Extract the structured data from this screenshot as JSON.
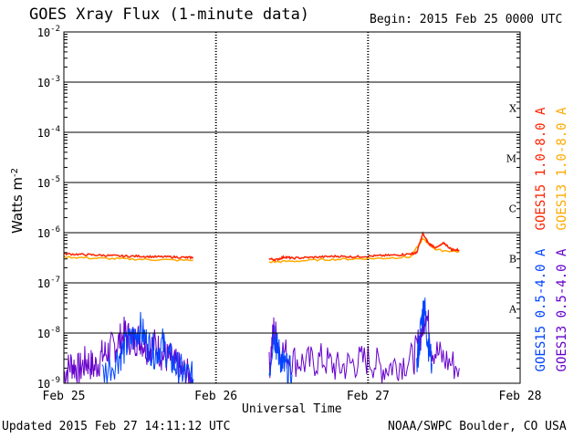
{
  "header": {
    "title": "GOES Xray Flux (1-minute data)",
    "begin": "Begin:  2015 Feb 25 0000 UTC"
  },
  "footer": {
    "updated": "Updated 2015 Feb 27 14:11:12 UTC",
    "credit": "NOAA/SWPC Boulder, CO USA"
  },
  "colors": {
    "goes15_long": "#ff2200",
    "goes13_long": "#ffaa00",
    "goes15_short": "#0044ff",
    "goes13_short": "#6600cc",
    "gridline": "#000000"
  },
  "chart_data": {
    "type": "line",
    "title": "GOES Xray Flux (1-minute data)",
    "xlabel": "Universal Time",
    "ylabel": "Watts m^-2",
    "yscale": "log",
    "ylim": [
      1e-09,
      0.01
    ],
    "xlim": [
      0,
      3
    ],
    "x_unit": "days since 2015 Feb 25 0000 UTC",
    "x_ticks": [
      "Feb 25",
      "Feb 26",
      "Feb 27",
      "Feb 28"
    ],
    "y_ticks": [
      {
        "mant": "10",
        "exp": "-9",
        "value": 1e-09
      },
      {
        "mant": "10",
        "exp": "-8",
        "value": 1e-08
      },
      {
        "mant": "10",
        "exp": "-7",
        "value": 1e-07
      },
      {
        "mant": "10",
        "exp": "-6",
        "value": 1e-06
      },
      {
        "mant": "10",
        "exp": "-5",
        "value": 1e-05
      },
      {
        "mant": "10",
        "exp": "-4",
        "value": 0.0001
      },
      {
        "mant": "10",
        "exp": "-3",
        "value": 0.001
      },
      {
        "mant": "10",
        "exp": "-2",
        "value": 0.01
      }
    ],
    "flare_classes": [
      {
        "label": "A",
        "value": 1e-08
      },
      {
        "label": "B",
        "value": 1e-07
      },
      {
        "label": "C",
        "value": 1e-06
      },
      {
        "label": "M",
        "value": 1e-05
      },
      {
        "label": "X",
        "value": 0.0001
      }
    ],
    "grid": true,
    "legend_position": "right",
    "legend": [
      {
        "name": "GOES15 1.0-8.0 A",
        "color": "#ff2200"
      },
      {
        "name": "GOES13 1.0-8.0 A",
        "color": "#ffaa00"
      },
      {
        "name": "GOES15 0.5-4.0 A",
        "color": "#0044ff"
      },
      {
        "name": "GOES13 0.5-4.0 A",
        "color": "#6600cc"
      }
    ],
    "series": [
      {
        "name": "GOES15 1.0-8.0 A",
        "color": "#ff2200",
        "segments": [
          {
            "x": [
              0.0,
              0.1,
              0.2,
              0.3,
              0.4,
              0.5,
              0.6,
              0.7,
              0.8,
              0.85
            ],
            "y": [
              3.8e-07,
              3.7e-07,
              3.6e-07,
              3.5e-07,
              3.4e-07,
              3.4e-07,
              3.3e-07,
              3.3e-07,
              3.2e-07,
              3.2e-07
            ]
          },
          {
            "x": [
              1.35,
              1.4,
              1.45,
              1.5,
              1.6,
              1.7,
              1.8,
              1.9,
              2.0,
              2.1,
              2.2,
              2.28,
              2.32,
              2.36,
              2.4,
              2.45,
              2.5,
              2.55,
              2.6
            ],
            "y": [
              3e-07,
              2.9e-07,
              3.3e-07,
              3.1e-07,
              3.2e-07,
              3.3e-07,
              3.4e-07,
              3.3e-07,
              3.4e-07,
              3.5e-07,
              3.6e-07,
              3.8e-07,
              4e-07,
              9.5e-07,
              6e-07,
              5e-07,
              6.2e-07,
              4.6e-07,
              4.5e-07
            ]
          }
        ]
      },
      {
        "name": "GOES13 1.0-8.0 A",
        "color": "#ffaa00",
        "segments": [
          {
            "x": [
              0.0,
              0.2,
              0.4,
              0.6,
              0.85
            ],
            "y": [
              3.3e-07,
              3.1e-07,
              3e-07,
              2.9e-07,
              2.8e-07
            ]
          },
          {
            "x": [
              1.35,
              1.5,
              1.7,
              1.9,
              2.1,
              2.28,
              2.36,
              2.45,
              2.6
            ],
            "y": [
              2.6e-07,
              2.7e-07,
              2.9e-07,
              3e-07,
              3.1e-07,
              3.3e-07,
              7.5e-07,
              4.5e-07,
              4.2e-07
            ]
          }
        ]
      },
      {
        "name": "GOES15 0.5-4.0 A",
        "color": "#0044ff",
        "segments": [
          {
            "x": [
              0.25,
              0.35,
              0.4,
              0.45,
              0.5,
              0.55,
              0.6,
              0.65,
              0.7,
              0.75,
              0.8,
              0.85
            ],
            "y": [
              1.5e-09,
              3e-09,
              5e-09,
              8e-09,
              1.3e-08,
              6e-09,
              4e-09,
              6e-09,
              3e-09,
              2e-09,
              1.5e-09,
              1.2e-09
            ]
          },
          {
            "x": [
              1.35,
              1.38,
              1.4,
              1.43,
              1.45,
              1.5
            ],
            "y": [
              1.5e-09,
              1.2e-08,
              5e-09,
              3e-09,
              2e-09,
              1.5e-09
            ]
          },
          {
            "x": [
              2.32,
              2.35,
              2.37,
              2.39,
              2.42
            ],
            "y": [
              2e-09,
              1.5e-08,
              4e-08,
              8e-09,
              2.5e-09
            ]
          }
        ]
      },
      {
        "name": "GOES13 0.5-4.0 A",
        "color": "#6600cc",
        "segments": [
          {
            "x": [
              0.0,
              0.05,
              0.1,
              0.15,
              0.2,
              0.25,
              0.3,
              0.35,
              0.4,
              0.45,
              0.5,
              0.55,
              0.6,
              0.65,
              0.7,
              0.75,
              0.8,
              0.85
            ],
            "y": [
              1.5e-09,
              2.5e-09,
              1.8e-09,
              2.8e-09,
              2e-09,
              3.5e-09,
              4.5e-09,
              6e-09,
              1e-08,
              7e-09,
              8e-09,
              5e-09,
              6e-09,
              3.5e-09,
              3e-09,
              2e-09,
              1.5e-09,
              1.2e-09
            ]
          },
          {
            "x": [
              1.35,
              1.38,
              1.42,
              1.5,
              1.6,
              1.7,
              1.8,
              1.9,
              2.0,
              2.1,
              2.2,
              2.3,
              2.35,
              2.38,
              2.42,
              2.5,
              2.6
            ],
            "y": [
              2e-09,
              1.2e-08,
              5e-09,
              3e-09,
              2.5e-09,
              3e-09,
              2e-09,
              2.5e-09,
              3e-09,
              2e-09,
              2.5e-09,
              3e-09,
              1e-08,
              3e-08,
              5e-09,
              3e-09,
              2e-09
            ]
          }
        ]
      }
    ]
  }
}
